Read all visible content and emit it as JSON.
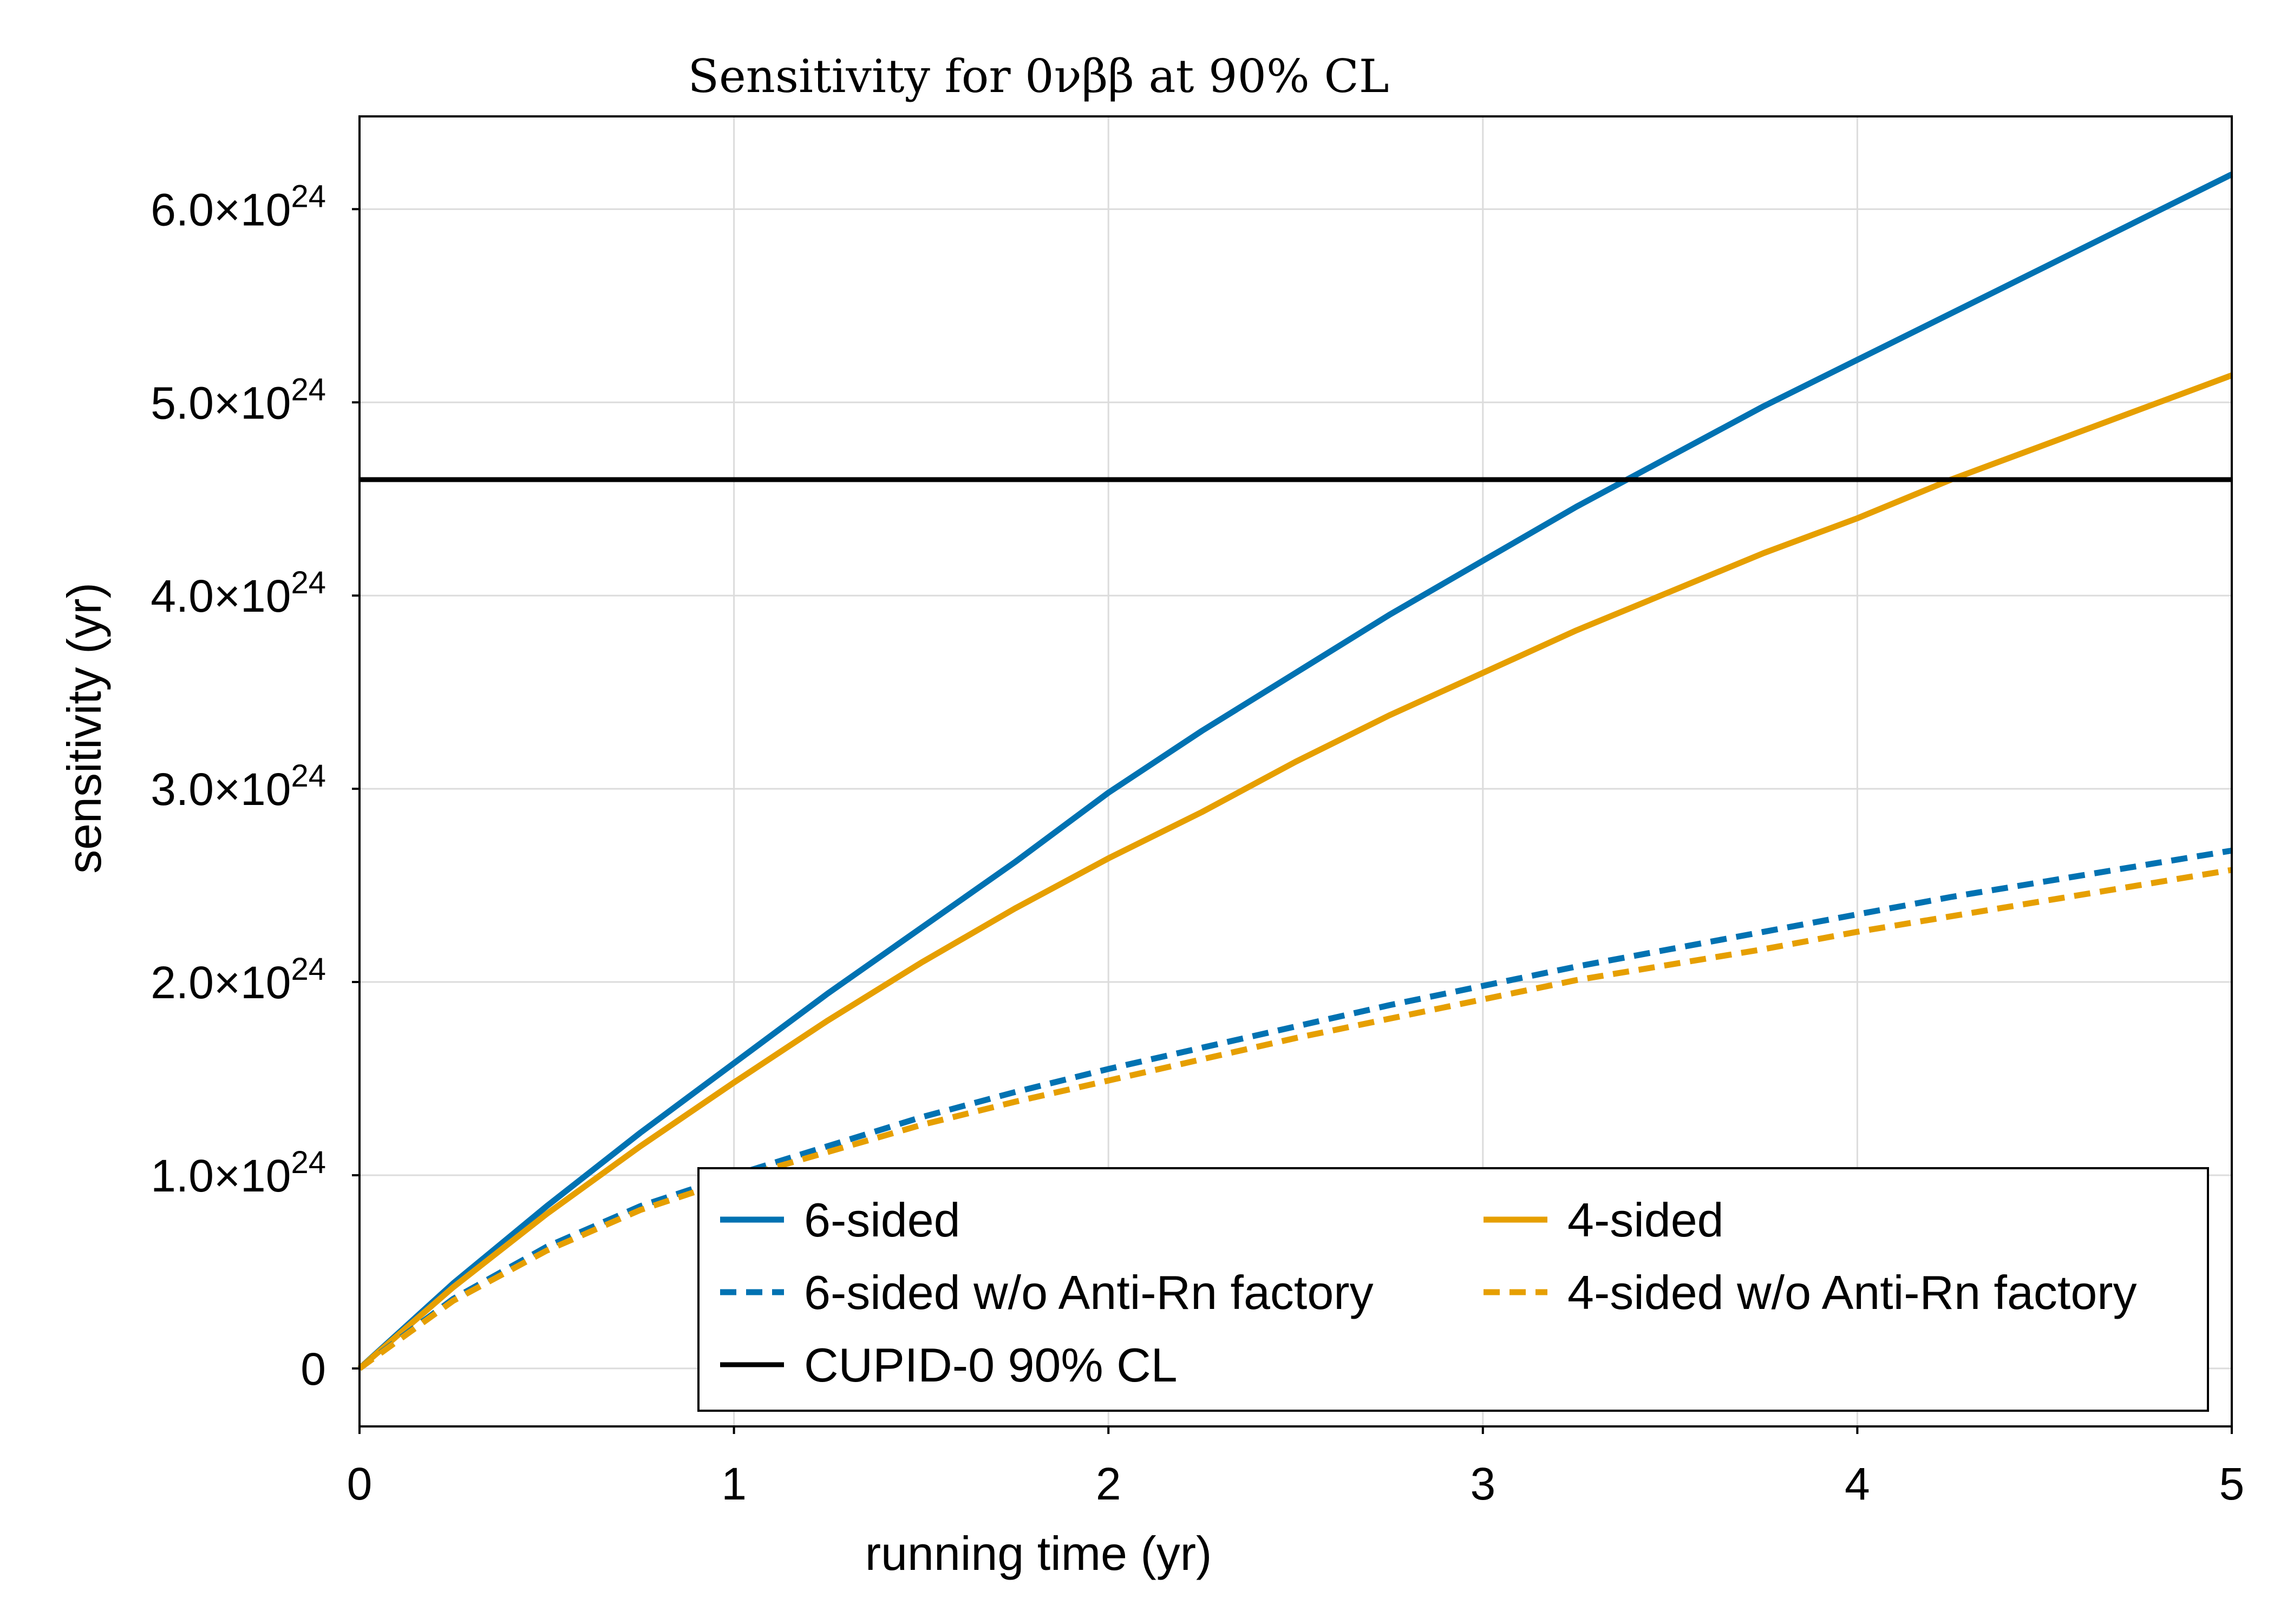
{
  "chart_data": {
    "type": "line",
    "title": "Sensitivity for 0νββ at 90% CL",
    "xlabel": "running time (yr)",
    "ylabel": "sensitivity (yr)",
    "xlim": [
      0,
      5
    ],
    "ylim": [
      -0.3,
      6.48
    ],
    "y_unit_multiplier": "1e24",
    "grid": true,
    "x_ticks": [
      {
        "value": 0,
        "label": "0"
      },
      {
        "value": 1,
        "label": "1"
      },
      {
        "value": 2,
        "label": "2"
      },
      {
        "value": 3,
        "label": "3"
      },
      {
        "value": 4,
        "label": "4"
      },
      {
        "value": 5,
        "label": "5"
      }
    ],
    "y_ticks": [
      {
        "value": 0,
        "label": "0",
        "exp": ""
      },
      {
        "value": 1,
        "label": "1.0×10",
        "exp": "24"
      },
      {
        "value": 2,
        "label": "2.0×10",
        "exp": "24"
      },
      {
        "value": 3,
        "label": "3.0×10",
        "exp": "24"
      },
      {
        "value": 4,
        "label": "4.0×10",
        "exp": "24"
      },
      {
        "value": 5,
        "label": "5.0×10",
        "exp": "24"
      },
      {
        "value": 6,
        "label": "6.0×10",
        "exp": "24"
      }
    ],
    "legend_position": "bottom-right",
    "x": [
      0,
      0.25,
      0.5,
      0.75,
      1.0,
      1.25,
      1.5,
      1.75,
      2.0,
      2.25,
      2.5,
      2.75,
      3.0,
      3.25,
      3.5,
      3.75,
      4.0,
      4.25,
      4.5,
      4.75,
      5.0
    ],
    "series": [
      {
        "name": "6-sided",
        "color": "#0072b2",
        "dash": false,
        "values": [
          0,
          0.44,
          0.84,
          1.22,
          1.58,
          1.94,
          2.28,
          2.62,
          2.98,
          3.3,
          3.6,
          3.9,
          4.18,
          4.46,
          4.72,
          4.98,
          5.22,
          5.46,
          5.7,
          5.94,
          6.18
        ]
      },
      {
        "name": "4-sided",
        "color": "#e69f00",
        "dash": false,
        "values": [
          0,
          0.42,
          0.8,
          1.15,
          1.48,
          1.8,
          2.1,
          2.38,
          2.64,
          2.88,
          3.14,
          3.38,
          3.6,
          3.82,
          4.02,
          4.22,
          4.4,
          4.6,
          4.78,
          4.96,
          5.14
        ]
      },
      {
        "name": "6-sided w/o Anti-Rn factory",
        "color": "#0072b2",
        "dash": true,
        "values": [
          0,
          0.36,
          0.63,
          0.84,
          1.0,
          1.15,
          1.3,
          1.43,
          1.55,
          1.66,
          1.77,
          1.88,
          1.98,
          2.08,
          2.17,
          2.26,
          2.35,
          2.44,
          2.52,
          2.6,
          2.68
        ]
      },
      {
        "name": "4-sided w/o Anti-Rn factory",
        "color": "#e69f00",
        "dash": true,
        "values": [
          0,
          0.35,
          0.61,
          0.82,
          0.98,
          1.12,
          1.26,
          1.38,
          1.49,
          1.6,
          1.71,
          1.81,
          1.91,
          2.01,
          2.09,
          2.17,
          2.26,
          2.34,
          2.42,
          2.5,
          2.58
        ]
      },
      {
        "name": "CUPID-0 90% CL",
        "color": "#000000",
        "dash": false,
        "constant": 4.6
      }
    ]
  }
}
